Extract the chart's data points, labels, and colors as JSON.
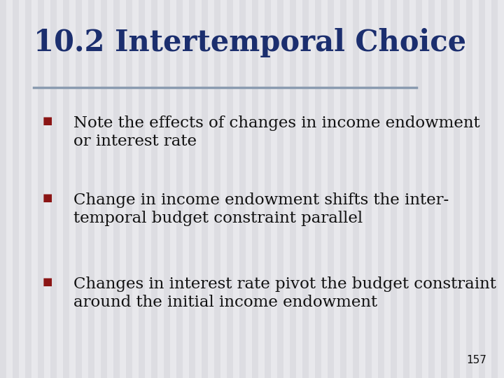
{
  "title": "10.2 Intertemporal Choice",
  "title_color": "#1b2e6e",
  "title_fontsize": 30,
  "title_font": "serif",
  "title_bold": true,
  "background_color": "#e8e8ec",
  "stripe_color": "#d5d5db",
  "divider_color": "#8a9bb0",
  "bullet_color": "#8b1515",
  "bullet_size": 11,
  "text_color": "#111111",
  "text_fontsize": 16.5,
  "text_font": "serif",
  "page_number": "157",
  "page_number_fontsize": 11,
  "bullets": [
    {
      "lines": [
        "Note the effects of changes in income endowment",
        "or interest rate"
      ]
    },
    {
      "lines": [
        "Change in income endowment shifts the inter-",
        "temporal budget constraint parallel"
      ]
    },
    {
      "lines": [
        "Changes in interest rate pivot the budget constraint",
        "around the initial income endowment"
      ]
    }
  ]
}
